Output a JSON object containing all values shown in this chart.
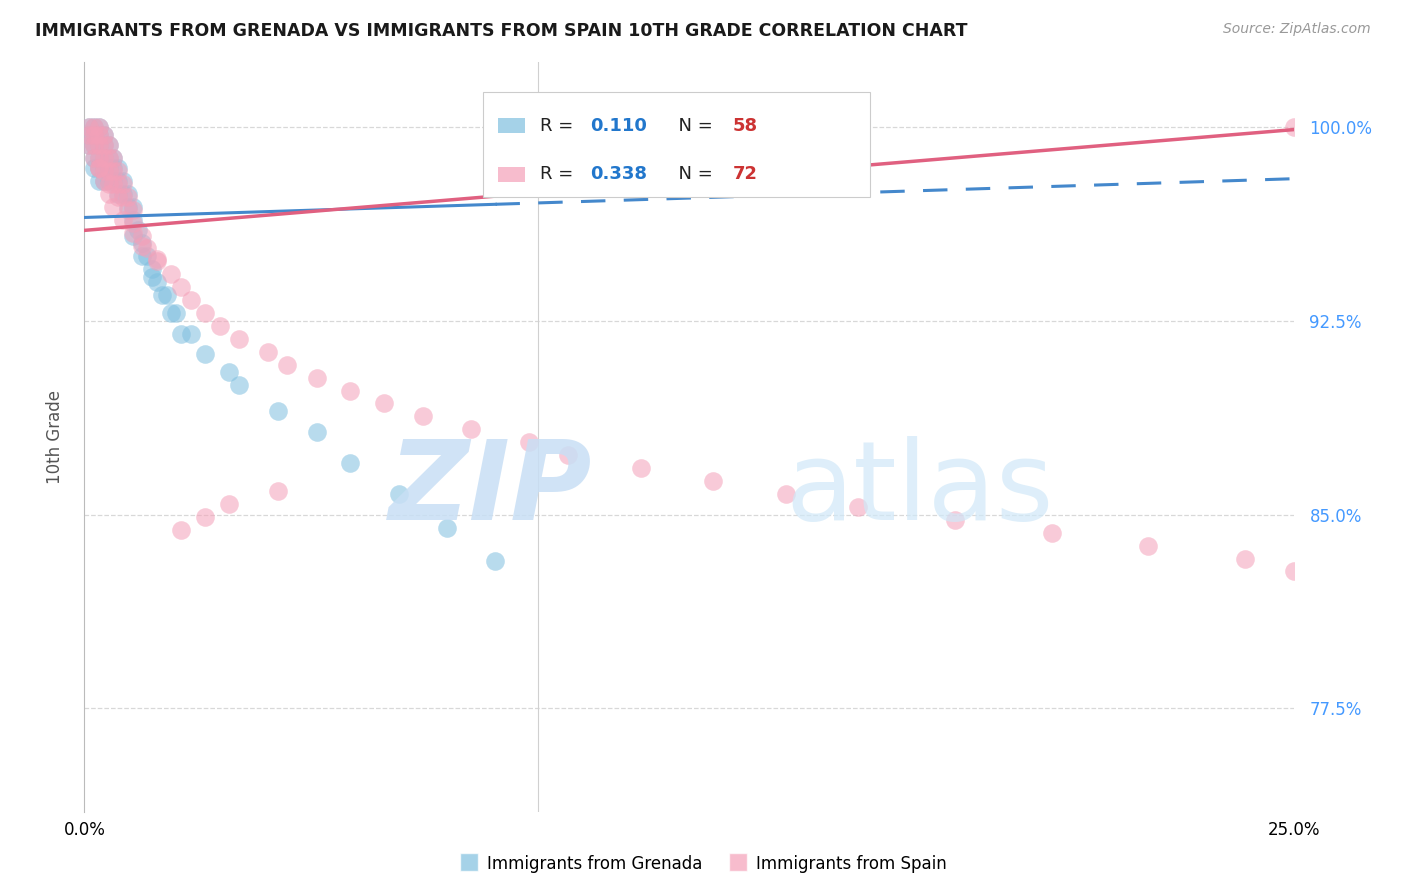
{
  "title": "IMMIGRANTS FROM GRENADA VS IMMIGRANTS FROM SPAIN 10TH GRADE CORRELATION CHART",
  "source": "Source: ZipAtlas.com",
  "ylabel": "10th Grade",
  "ytick_labels": [
    "77.5%",
    "85.0%",
    "92.5%",
    "100.0%"
  ],
  "ytick_values": [
    0.775,
    0.85,
    0.925,
    1.0
  ],
  "xmin": 0.0,
  "xmax": 0.25,
  "ymin": 0.735,
  "ymax": 1.025,
  "blue_color": "#7fbfdf",
  "pink_color": "#f4a0b8",
  "blue_line_color": "#4488cc",
  "pink_line_color": "#e06080",
  "right_axis_color": "#4499ff",
  "watermark_zip_color": "#c8dff5",
  "watermark_atlas_color": "#d0e8f8",
  "legend_r_color": "#2277cc",
  "legend_n_color": "#cc3333"
}
